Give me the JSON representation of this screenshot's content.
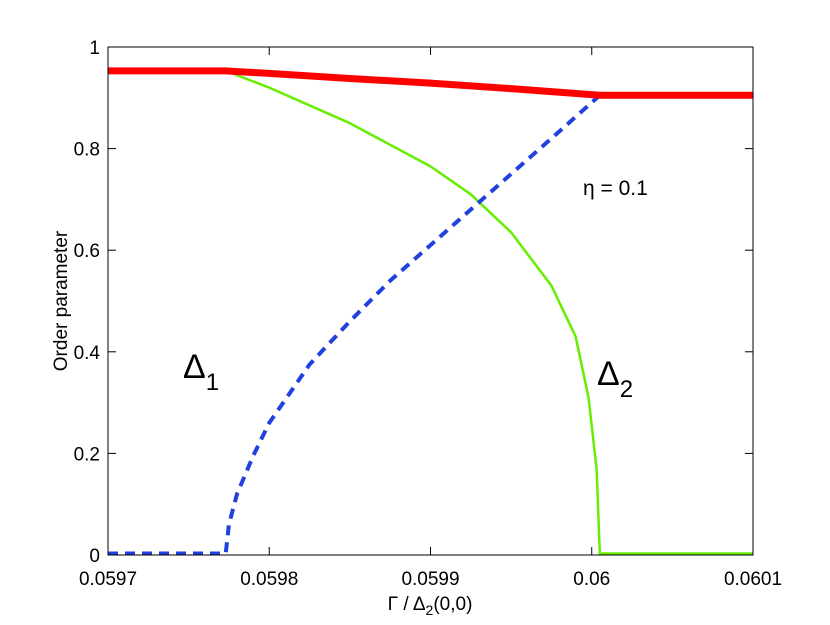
{
  "chart_data": {
    "type": "line",
    "xlabel": "Γ / Δ2(0,0)",
    "xlabel_main": "Γ / Δ",
    "xlabel_sub": "2",
    "xlabel_tail": "(0,0)",
    "ylabel": "Order parameter",
    "xlim": [
      0.0597,
      0.0601
    ],
    "ylim": [
      0,
      1
    ],
    "xticks": [
      0.0597,
      0.0598,
      0.0599,
      0.06,
      0.0601
    ],
    "xtick_labels": [
      "0.0597",
      "0.0598",
      "0.0599",
      "0.06",
      "0.0601"
    ],
    "yticks": [
      0,
      0.2,
      0.4,
      0.6,
      0.8,
      1
    ],
    "ytick_labels": [
      "0",
      "0.2",
      "0.4",
      "0.6",
      "0.8",
      "1"
    ],
    "grid": false,
    "annotations": {
      "eta": "η = 0.1",
      "delta1_main": "Δ",
      "delta1_sub": "1",
      "delta2_main": "Δ",
      "delta2_sub": "2"
    },
    "series": [
      {
        "color": "#ff0000",
        "style": "solid-thick",
        "x": [
          0.0597,
          0.059773,
          0.0598,
          0.05985,
          0.0599,
          0.05995,
          0.060005,
          0.0601
        ],
        "y": [
          0.953,
          0.953,
          0.948,
          0.938,
          0.929,
          0.918,
          0.905,
          0.905
        ]
      },
      {
        "color": "#2040e0",
        "style": "dashed",
        "x": [
          0.0597,
          0.059773,
          0.059775,
          0.05978,
          0.05979,
          0.0598,
          0.059825,
          0.05985,
          0.059875,
          0.0599,
          0.059925,
          0.05995,
          0.059975,
          0.060005
        ],
        "y": [
          0.003,
          0.003,
          0.06,
          0.12,
          0.195,
          0.26,
          0.375,
          0.46,
          0.54,
          0.61,
          0.68,
          0.75,
          0.82,
          0.905
        ]
      },
      {
        "color": "#66ee00",
        "style": "solid",
        "x": [
          0.059773,
          0.0598,
          0.05985,
          0.0599,
          0.059925,
          0.05995,
          0.059975,
          0.05999,
          0.059998,
          0.060003,
          0.060005,
          0.0601
        ],
        "y": [
          0.953,
          0.92,
          0.85,
          0.765,
          0.71,
          0.635,
          0.53,
          0.43,
          0.31,
          0.17,
          0.003,
          0.003
        ]
      }
    ]
  }
}
